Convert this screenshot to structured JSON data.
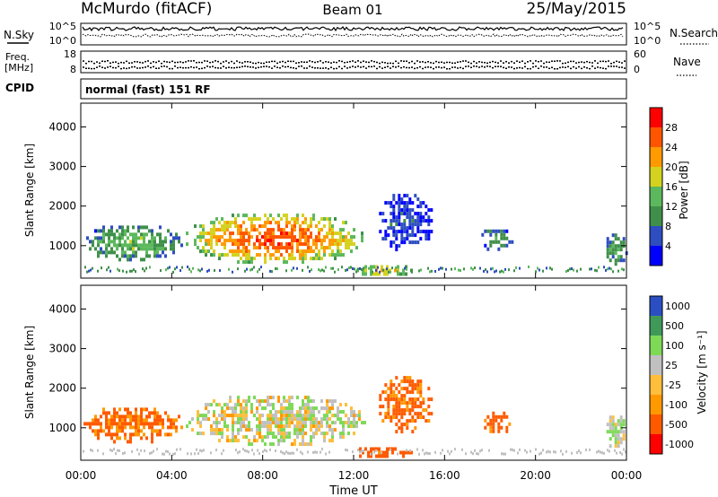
{
  "header": {
    "station": "McMurdo (fitACF)",
    "beam": "Beam 01",
    "date": "25/May/2015"
  },
  "status_panels": {
    "nsky_label": "N.Sky",
    "nsearch_label": "N.Search",
    "noise_ticks": [
      "10^5",
      "10^0"
    ],
    "freq_label_top": "Freq.",
    "freq_label_bottom": "[MHz]",
    "freq_ticks": [
      "18",
      "8"
    ],
    "nave_label": "Nave",
    "nave_ticks": [
      "60",
      "0"
    ],
    "cpid_label": "CPID",
    "cpid_value": "normal (fast) 151 RF"
  },
  "colors": {
    "power": [
      "#0000ff",
      "#2e4dc0",
      "#3f8f4a",
      "#5cb85c",
      "#d4d21f",
      "#ff9a00",
      "#ff5500",
      "#ff0000"
    ],
    "velocity": [
      "#ff0000",
      "#ff5a00",
      "#ff9900",
      "#ffbe3c",
      "#c0c0c0",
      "#7ed957",
      "#3f9a5a",
      "#2b4fc3"
    ]
  },
  "chart_data": [
    {
      "type": "heatmap",
      "name": "power",
      "ylabel": "Slant Range [km]",
      "xlim": [
        "00:00",
        "00:00"
      ],
      "ylim": [
        180,
        4600
      ],
      "yticks": [
        1000,
        2000,
        3000,
        4000
      ],
      "colorbar": {
        "label": "Power [dB]",
        "range": [
          0,
          32
        ],
        "ticks": [
          4,
          8,
          12,
          16,
          20,
          24,
          28
        ]
      },
      "echo_regions": [
        {
          "t_start": 0.0,
          "t_end": 4.5,
          "range_km": [
            650,
            1600
          ],
          "value_db": 14
        },
        {
          "t_start": 4.5,
          "t_end": 12.5,
          "range_km": [
            550,
            1900
          ],
          "value_db": 27
        },
        {
          "t_start": 12.0,
          "t_end": 14.5,
          "range_km": [
            250,
            600
          ],
          "value_db": 20
        },
        {
          "t_start": 13.0,
          "t_end": 15.5,
          "range_km": [
            900,
            2400
          ],
          "value_db": 6
        },
        {
          "t_start": 17.5,
          "t_end": 19.0,
          "range_km": [
            900,
            1500
          ],
          "value_db": 10
        },
        {
          "t_start": 23.0,
          "t_end": 24.0,
          "range_km": [
            500,
            1400
          ],
          "value_db": 12
        }
      ]
    },
    {
      "type": "heatmap",
      "name": "velocity",
      "ylabel": "Slant Range [km]",
      "xlabel": "Time UT",
      "xlim": [
        "00:00",
        "00:00"
      ],
      "ylim": [
        180,
        4600
      ],
      "yticks": [
        1000,
        2000,
        3000,
        4000
      ],
      "xticks": [
        "00:00",
        "04:00",
        "08:00",
        "12:00",
        "16:00",
        "20:00",
        "00:00"
      ],
      "colorbar": {
        "label": "Velocity [m s⁻¹]",
        "ticks": [
          "1000",
          "500",
          "100",
          "25",
          "-25",
          "-100",
          "-500",
          "-1000"
        ]
      },
      "echo_regions": [
        {
          "t_start": 0.0,
          "t_end": 4.5,
          "range_km": [
            650,
            1600
          ],
          "value_ms": -150
        },
        {
          "t_start": 4.5,
          "t_end": 12.5,
          "range_km": [
            550,
            1900
          ],
          "value_ms": 60
        },
        {
          "t_start": 12.0,
          "t_end": 14.5,
          "range_km": [
            250,
            600
          ],
          "value_ms": -200
        },
        {
          "t_start": 13.0,
          "t_end": 15.5,
          "range_km": [
            900,
            2400
          ],
          "value_ms": -150
        },
        {
          "t_start": 17.5,
          "t_end": 19.0,
          "range_km": [
            900,
            1500
          ],
          "value_ms": -150
        },
        {
          "t_start": 23.0,
          "t_end": 24.0,
          "range_km": [
            500,
            1400
          ],
          "value_ms": 80
        }
      ]
    }
  ]
}
